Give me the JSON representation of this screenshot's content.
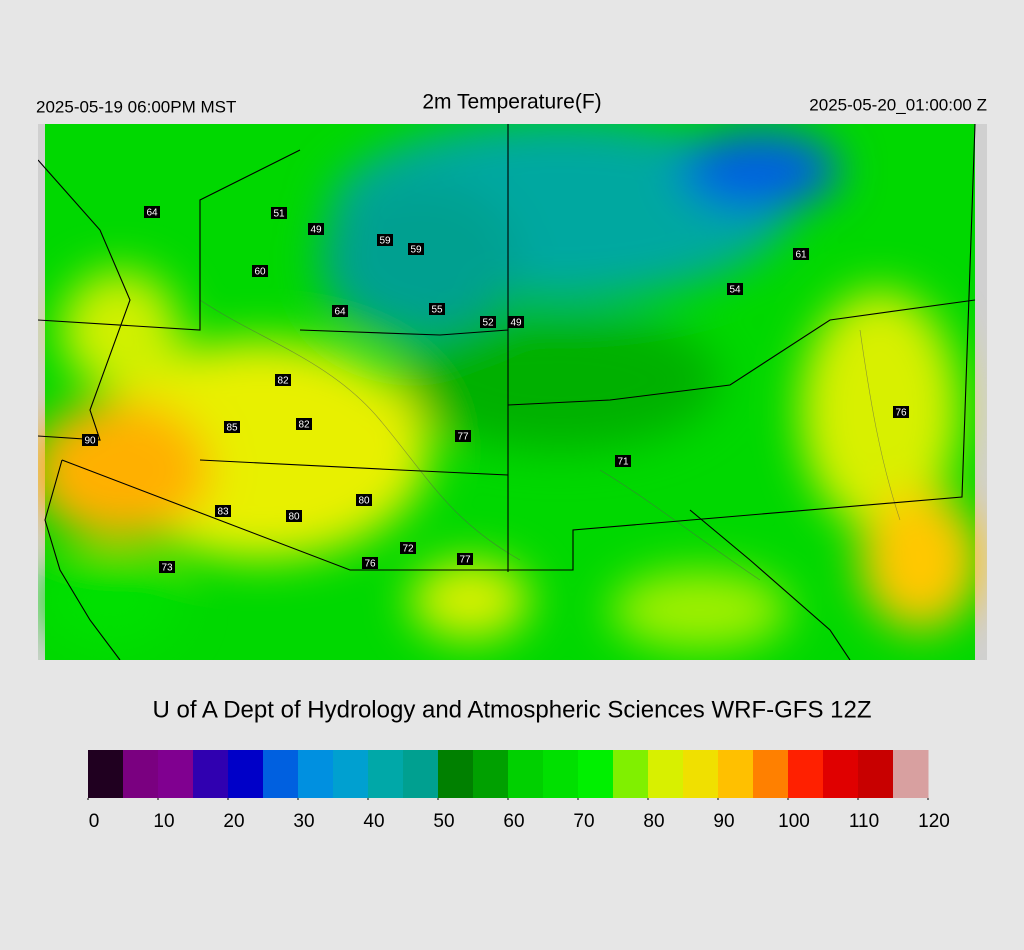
{
  "header": {
    "left": "2025-05-19 06:00PM MST",
    "title": "2m Temperature(F)",
    "right": "2025-05-20_01:00:00 Z"
  },
  "stations": [
    64,
    51,
    49,
    59,
    59,
    60,
    64,
    55,
    52,
    49,
    54,
    61,
    82,
    85,
    82,
    90,
    77,
    71,
    76,
    80,
    83,
    80,
    72,
    76,
    77,
    73
  ],
  "credit": "U of A Dept of Hydrology and Atmospheric Sciences WRF-GFS 12Z",
  "colorbar": {
    "range": [
      0,
      120
    ],
    "ticks": [
      0,
      10,
      20,
      30,
      40,
      50,
      60,
      70,
      80,
      90,
      100,
      110,
      120
    ],
    "colors": [
      "#200020",
      "#7a0080",
      "#800090",
      "#3000b0",
      "#0000c8",
      "#0060e0",
      "#0090e0",
      "#00a0d0",
      "#00a8a8",
      "#00a090",
      "#008000",
      "#00a000",
      "#00d000",
      "#00e000",
      "#00f000",
      "#80f000",
      "#d8f000",
      "#f0e000",
      "#ffc000",
      "#ff8000",
      "#ff2000",
      "#e00000",
      "#c80000",
      "#d8a0a0"
    ]
  }
}
